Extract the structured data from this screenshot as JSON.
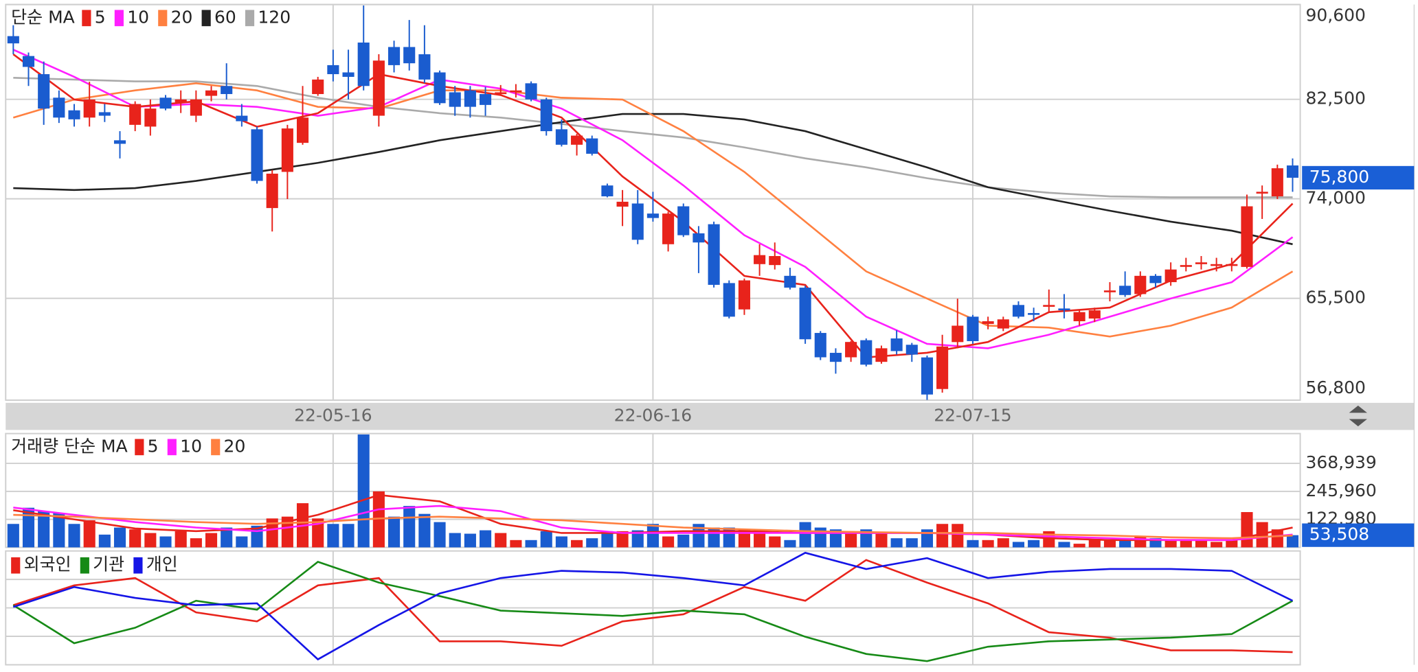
{
  "chart_data": [
    {
      "type": "candlestick",
      "legend_title": "단순 MA",
      "categories": [
        null,
        null,
        null,
        null,
        null,
        null,
        null,
        null,
        null,
        null,
        null,
        null,
        null,
        null,
        null,
        null,
        null,
        null,
        null,
        null,
        null,
        "22-05-16",
        null,
        null,
        null,
        null,
        null,
        null,
        null,
        null,
        null,
        null,
        null,
        null,
        null,
        null,
        null,
        null,
        null,
        null,
        null,
        null,
        "22-06-16",
        null,
        null,
        null,
        null,
        null,
        null,
        null,
        null,
        null,
        null,
        null,
        null,
        null,
        null,
        null,
        null,
        null,
        null,
        null,
        null,
        "22-07-15",
        null,
        null,
        null,
        null,
        null,
        null,
        null,
        null,
        null,
        null,
        null,
        null,
        null,
        null,
        null,
        null,
        null,
        null,
        null,
        null,
        null
      ],
      "open": [
        87900,
        86200,
        84650,
        82640,
        81560,
        80940,
        81400,
        79000,
        80320,
        80170,
        82640,
        82250,
        81100,
        82800,
        83640,
        81100,
        79940,
        73210,
        76300,
        78780,
        82950,
        85420,
        84800,
        87350,
        81100,
        86970,
        86970,
        86350,
        84800,
        83100,
        83260,
        82950,
        82950,
        83100,
        83870,
        82490,
        79940,
        78620,
        79160,
        75140,
        73330,
        73600,
        72740,
        70120,
        73360,
        71050,
        71830,
        66800,
        64550,
        68420,
        68340,
        67420,
        66410,
        62540,
        60840,
        60460,
        61920,
        60070,
        62070,
        61530,
        60450,
        57750,
        61760,
        63930,
        63310,
        62920,
        64930,
        64240,
        64850,
        64630,
        63540,
        63770,
        66090,
        66570,
        65860,
        67420,
        66880,
        68260,
        68490,
        68340,
        68340,
        68180,
        74520,
        74210,
        76850
      ],
      "high": [
        88830,
        86500,
        85730,
        83260,
        82100,
        84000,
        82100,
        79780,
        82330,
        82490,
        82870,
        83260,
        83260,
        83640,
        85580,
        82100,
        80170,
        76460,
        80320,
        83640,
        84420,
        86740,
        86740,
        90520,
        86350,
        87510,
        89280,
        88830,
        84960,
        83640,
        83640,
        83570,
        83720,
        83800,
        84030,
        82640,
        80780,
        79550,
        79400,
        75300,
        74750,
        74750,
        74600,
        72900,
        73600,
        71670,
        72050,
        67030,
        67190,
        70120,
        70270,
        68110,
        66570,
        62700,
        61230,
        61850,
        62070,
        61460,
        62770,
        61690,
        60610,
        62380,
        65470,
        64080,
        63930,
        63930,
        65240,
        64700,
        66250,
        65860,
        64470,
        64700,
        66880,
        67800,
        67800,
        67570,
        68570,
        68960,
        69110,
        68960,
        68960,
        74360,
        75140,
        76920,
        77450
      ],
      "low": [
        86350,
        83640,
        80320,
        80480,
        80170,
        80170,
        80560,
        77450,
        79780,
        79400,
        81560,
        81330,
        80560,
        82330,
        82490,
        80170,
        75300,
        71210,
        73980,
        78620,
        82800,
        84030,
        82490,
        83260,
        80170,
        84800,
        84960,
        83880,
        82020,
        81090,
        80940,
        81090,
        82800,
        82650,
        82330,
        79400,
        78470,
        77700,
        77700,
        74130,
        71670,
        70120,
        72050,
        69500,
        70740,
        67650,
        66420,
        63780,
        64080,
        67420,
        67960,
        66250,
        61610,
        60220,
        59060,
        60070,
        59680,
        59910,
        60690,
        60070,
        56820,
        57440,
        61220,
        61610,
        62850,
        62700,
        63780,
        63540,
        64320,
        63780,
        63160,
        63470,
        65240,
        65620,
        65620,
        66420,
        66570,
        67800,
        67960,
        67800,
        67800,
        68030,
        72280,
        73980,
        74600
      ],
      "close": [
        87280,
        85270,
        81710,
        80940,
        80790,
        82490,
        81100,
        78700,
        82100,
        81710,
        81710,
        82490,
        82490,
        83260,
        82950,
        80630,
        75530,
        76150,
        80010,
        80940,
        84190,
        84650,
        84420,
        83640,
        85810,
        85420,
        85580,
        84190,
        82170,
        81860,
        81860,
        82020,
        83100,
        83260,
        82490,
        79780,
        78620,
        79400,
        77850,
        74210,
        73750,
        70500,
        72360,
        72740,
        70890,
        70270,
        66650,
        63930,
        67030,
        69190,
        69110,
        66410,
        62000,
        60460,
        60070,
        61770,
        59830,
        61230,
        60990,
        60690,
        57280,
        61380,
        63160,
        61840,
        63540,
        63700,
        63930,
        64160,
        64930,
        64550,
        64320,
        64470,
        66170,
        65780,
        67420,
        66800,
        67960,
        68340,
        68570,
        68420,
        68420,
        73360,
        74600,
        76610,
        75800
      ],
      "last_label": "75,800",
      "up_color": "#e8231b",
      "down_color": "#1a5ccf",
      "ylim": [
        56800,
        90600
      ],
      "yticks": [
        {
          "value": 56800,
          "label": "56,800"
        },
        {
          "value": 65500,
          "label": "65,500"
        },
        {
          "value": 74000,
          "label": "74,000"
        },
        {
          "value": 82500,
          "label": "82,500"
        },
        {
          "value": 90600,
          "label": "90,600"
        }
      ],
      "grid": true,
      "series": [
        {
          "name": "5",
          "color": "#e8231b",
          "x": [
            0,
            4,
            8,
            12,
            16,
            20,
            24,
            28,
            32,
            36,
            40,
            44,
            48,
            52,
            56,
            60,
            64,
            68,
            72,
            76,
            80,
            84
          ],
          "values": [
            86350,
            82480,
            81860,
            82330,
            80160,
            81320,
            84650,
            83640,
            82870,
            80940,
            75910,
            72050,
            67410,
            66640,
            60450,
            60840,
            61770,
            64320,
            64710,
            67020,
            68420,
            73590
          ]
        },
        {
          "name": "10",
          "color": "#ff1fff",
          "x": [
            0,
            4,
            8,
            12,
            16,
            20,
            24,
            28,
            32,
            36,
            40,
            44,
            48,
            52,
            56,
            60,
            64,
            68,
            72,
            76,
            80,
            84
          ],
          "values": [
            86740,
            84420,
            81860,
            82100,
            81860,
            81090,
            81860,
            84190,
            83410,
            81710,
            79010,
            75140,
            70890,
            68180,
            63930,
            61610,
            61230,
            62390,
            63930,
            65480,
            66870,
            70730
          ]
        },
        {
          "name": "20",
          "color": "#ff8040",
          "x": [
            0,
            4,
            8,
            12,
            16,
            20,
            24,
            28,
            32,
            36,
            40,
            44,
            48,
            52,
            56,
            60,
            64,
            68,
            72,
            76,
            80,
            84
          ],
          "values": [
            80940,
            82480,
            83260,
            83870,
            83260,
            81860,
            81710,
            83260,
            83260,
            82640,
            82480,
            79780,
            76300,
            72050,
            67800,
            65480,
            63160,
            63000,
            62230,
            63160,
            64710,
            67800
          ]
        },
        {
          "name": "60",
          "color": "#222222",
          "x": [
            0,
            4,
            8,
            12,
            16,
            20,
            24,
            28,
            32,
            36,
            40,
            44,
            48,
            52,
            56,
            60,
            64,
            68,
            72,
            76,
            80,
            84
          ],
          "values": [
            74910,
            74750,
            74910,
            75530,
            76300,
            77070,
            78000,
            79000,
            79780,
            80550,
            81250,
            81250,
            80780,
            79780,
            78230,
            76690,
            74990,
            73980,
            72980,
            72050,
            71280,
            70120
          ]
        },
        {
          "name": "120",
          "color": "#aaaaaa",
          "x": [
            0,
            4,
            8,
            12,
            16,
            20,
            24,
            28,
            32,
            36,
            40,
            44,
            48,
            52,
            56,
            60,
            64,
            68,
            72,
            76,
            80,
            84
          ],
          "values": [
            84340,
            84190,
            84030,
            84030,
            83640,
            82640,
            81860,
            81320,
            80940,
            80400,
            79780,
            79240,
            78390,
            77460,
            76690,
            75760,
            74990,
            74520,
            74210,
            74130,
            74130,
            74130
          ]
        }
      ]
    },
    {
      "type": "bar",
      "legend_title": "거래량 단순 MA",
      "values": [
        103000,
        174000,
        159000,
        151000,
        103000,
        119000,
        56000,
        87000,
        79000,
        63000,
        48000,
        71000,
        40000,
        63000,
        87000,
        48000,
        95000,
        127000,
        135000,
        194000,
        127000,
        103000,
        103000,
        496000,
        246000,
        135000,
        182000,
        147000,
        111000,
        63000,
        60000,
        75000,
        63000,
        32000,
        32000,
        71000,
        48000,
        32000,
        40000,
        71000,
        71000,
        75000,
        103000,
        48000,
        56000,
        103000,
        87000,
        87000,
        79000,
        79000,
        48000,
        32000,
        111000,
        87000,
        79000,
        63000,
        79000,
        63000,
        40000,
        40000,
        79000,
        103000,
        103000,
        32000,
        32000,
        40000,
        24000,
        32000,
        71000,
        24000,
        16000,
        32000,
        32000,
        40000,
        48000,
        40000,
        32000,
        32000,
        32000,
        24000,
        32000,
        155000,
        111000,
        79000,
        53508
      ],
      "last_label": "53,508",
      "ylim": [
        0,
        500000
      ],
      "yticks": [
        {
          "value": 122980,
          "label": "122,980"
        },
        {
          "value": 245960,
          "label": "245,960"
        },
        {
          "value": 368939,
          "label": "368,939"
        }
      ],
      "grid": true,
      "series": [
        {
          "name": "5",
          "color": "#e8231b",
          "x": [
            0,
            4,
            8,
            12,
            16,
            20,
            24,
            28,
            32,
            36,
            40,
            44,
            48,
            52,
            56,
            60,
            64,
            68,
            72,
            76,
            80,
            84
          ],
          "values": [
            163000,
            123000,
            83000,
            71000,
            83000,
            143000,
            230000,
            202000,
            103000,
            63000,
            63000,
            71000,
            71000,
            63000,
            63000,
            63000,
            56000,
            40000,
            32000,
            32000,
            32000,
            87000
          ]
        },
        {
          "name": "10",
          "color": "#ff1fff",
          "x": [
            0,
            4,
            8,
            12,
            16,
            20,
            24,
            28,
            32,
            36,
            40,
            44,
            48,
            52,
            56,
            60,
            64,
            68,
            72,
            76,
            80,
            84
          ],
          "values": [
            175000,
            143000,
            111000,
            87000,
            71000,
            103000,
            167000,
            182000,
            159000,
            87000,
            63000,
            63000,
            63000,
            63000,
            63000,
            63000,
            56000,
            48000,
            40000,
            32000,
            32000,
            56000
          ]
        },
        {
          "name": "20",
          "color": "#ff8040",
          "x": [
            0,
            4,
            8,
            12,
            16,
            20,
            24,
            28,
            32,
            36,
            40,
            44,
            48,
            52,
            56,
            60,
            64,
            68,
            72,
            76,
            80,
            84
          ],
          "values": [
            143000,
            135000,
            123000,
            111000,
            103000,
            111000,
            127000,
            135000,
            127000,
            119000,
            103000,
            87000,
            79000,
            71000,
            67000,
            63000,
            63000,
            56000,
            52000,
            44000,
            40000,
            52000
          ]
        }
      ]
    },
    {
      "type": "line",
      "ylim": [
        0,
        100
      ],
      "series": [
        {
          "name": "외국인",
          "color": "#e8231b",
          "x": [
            0,
            4,
            8,
            12,
            16,
            20,
            24,
            28,
            32,
            36,
            40,
            44,
            48,
            52,
            56,
            60,
            64,
            68,
            72,
            76,
            80,
            84
          ],
          "values": [
            52.4,
            69.8,
            76.2,
            46.0,
            38.1,
            69.8,
            76.2,
            20.6,
            20.6,
            16.7,
            38.1,
            44.4,
            68.3,
            56.3,
            92.1,
            72.2,
            54.0,
            28.6,
            23.8,
            12.7,
            12.7,
            11.1
          ]
        },
        {
          "name": "기관",
          "color": "#168a16",
          "x": [
            0,
            4,
            8,
            12,
            16,
            20,
            24,
            28,
            32,
            36,
            40,
            44,
            48,
            52,
            56,
            60,
            64,
            68,
            72,
            76,
            80,
            84
          ],
          "values": [
            52.4,
            19.0,
            32.5,
            56.3,
            48.4,
            90.5,
            72.2,
            60.3,
            47.6,
            45.2,
            42.9,
            47.6,
            44.4,
            24.6,
            9.5,
            3.2,
            15.9,
            20.6,
            22.2,
            23.8,
            27.0,
            56.3
          ]
        },
        {
          "name": "개인",
          "color": "#1515e6",
          "x": [
            0,
            4,
            8,
            12,
            16,
            20,
            24,
            28,
            32,
            36,
            40,
            44,
            48,
            52,
            56,
            60,
            64,
            68,
            72,
            76,
            80,
            84
          ],
          "values": [
            50.8,
            68.3,
            58.7,
            52.4,
            54.0,
            4.8,
            34.9,
            62.7,
            76.2,
            82.5,
            81.0,
            76.2,
            69.8,
            98.4,
            84.1,
            93.7,
            76.2,
            81.7,
            84.1,
            84.1,
            82.5,
            56.3
          ]
        }
      ]
    }
  ]
}
